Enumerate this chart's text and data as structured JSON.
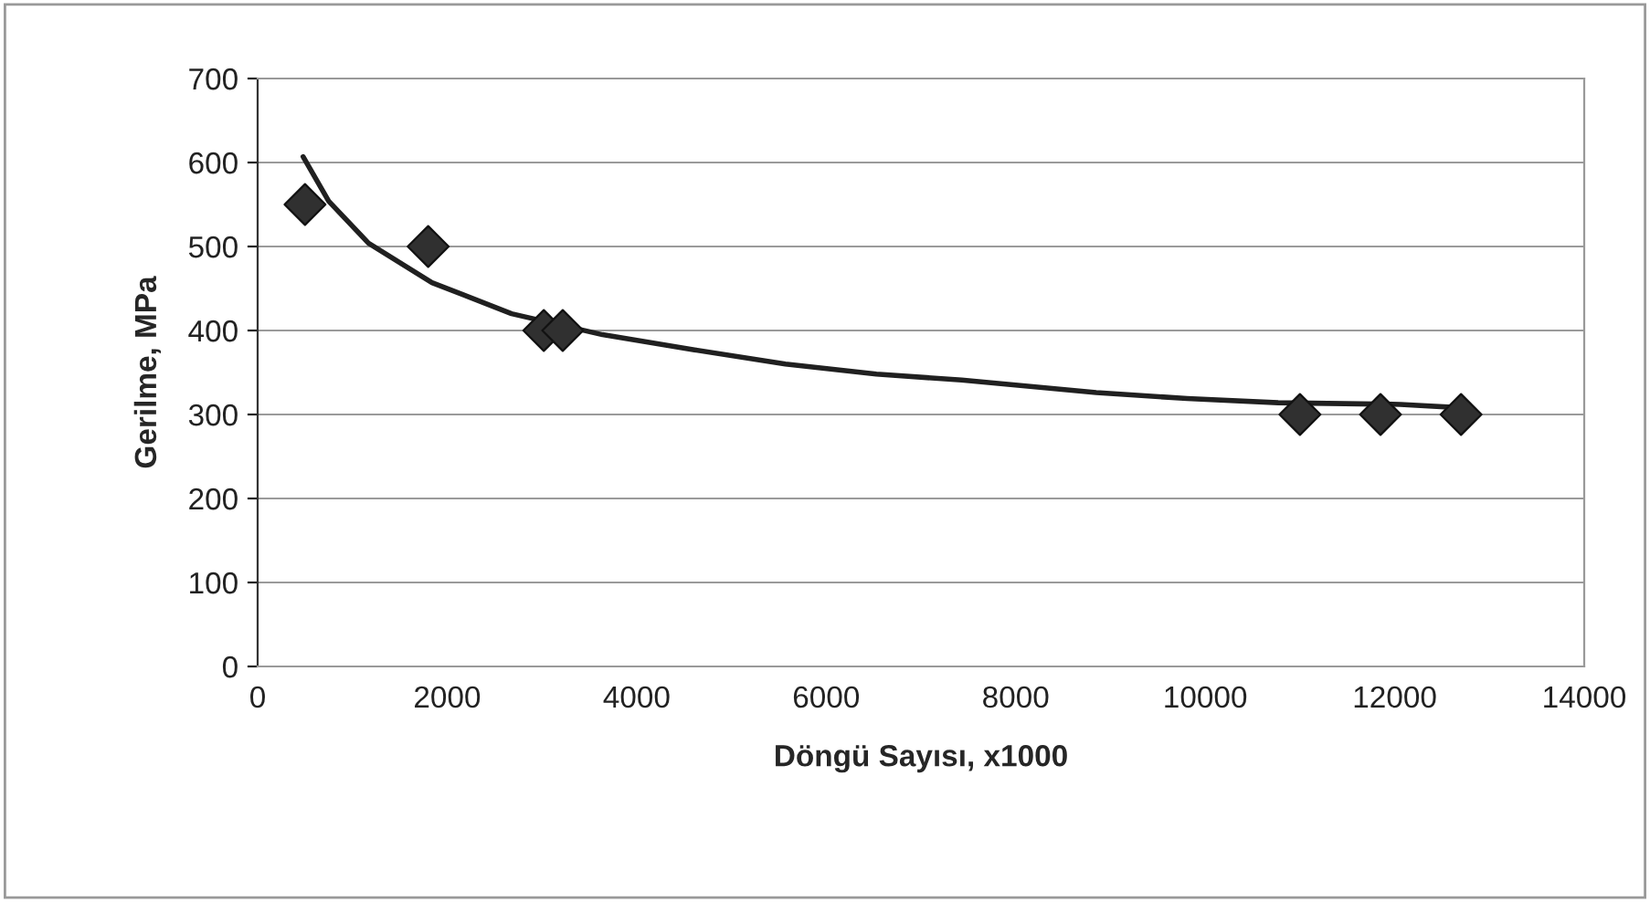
{
  "chart_data": {
    "type": "scatter",
    "xlabel": "Döngü Sayısı, x1000",
    "ylabel": "Gerilme, MPa",
    "series": [
      {
        "color": "#303030",
        "marker": "diamond",
        "x": [
          500,
          1800,
          3020,
          3220,
          11000,
          11850,
          12700
        ],
        "values": [
          550,
          500,
          400,
          400,
          300,
          300,
          300
        ]
      },
      {
        "type": "line",
        "color": "#202020",
        "marker": "none",
        "line_style": "solid",
        "x": [
          480,
          750,
          1170,
          1840,
          2680,
          3640,
          4610,
          5570,
          6530,
          7430,
          8850,
          9810,
          10770,
          12060,
          12700
        ],
        "values": [
          607,
          554,
          504,
          457,
          420,
          395,
          377,
          360,
          348,
          341,
          326,
          319,
          314,
          312,
          308
        ]
      }
    ],
    "xlim": [
      0,
      14000
    ],
    "xticks": [
      0,
      2000,
      4000,
      6000,
      8000,
      10000,
      12000,
      14000
    ],
    "ylim": [
      0,
      700
    ],
    "yticks": [
      0,
      100,
      200,
      300,
      400,
      500,
      600,
      700
    ],
    "grid": "y",
    "legend": false
  }
}
